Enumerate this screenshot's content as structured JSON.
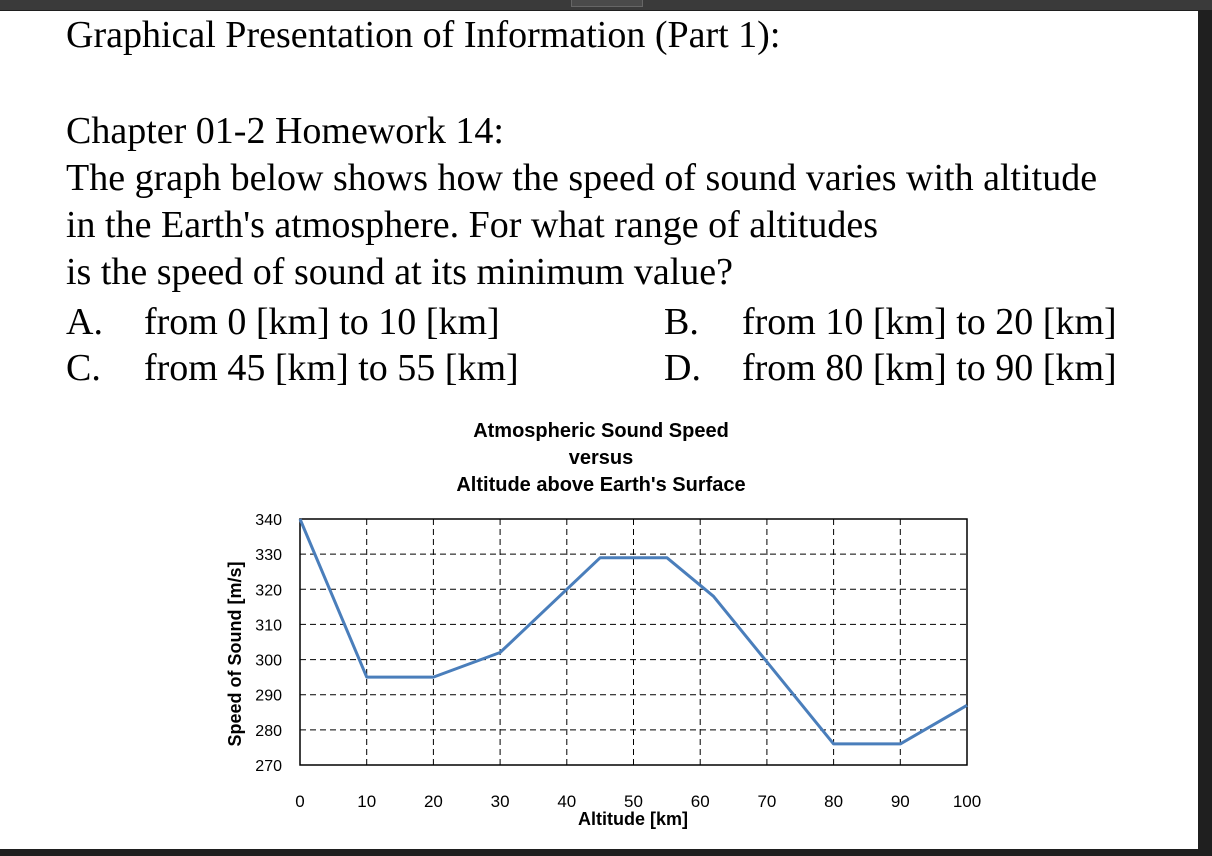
{
  "title": "Graphical Presentation of Information (Part 1):",
  "question": {
    "chapter": "Chapter 01-2 Homework 14:",
    "lines": [
      "The graph below shows how the speed of sound varies with altitude",
      "in the Earth's atmosphere.  For what range of altitudes",
      "is the speed of sound at its minimum value?"
    ],
    "options": [
      {
        "letter": "A.",
        "text": "from 0 [km] to 10 [km]"
      },
      {
        "letter": "B.",
        "text": "from 10 [km] to 20 [km]"
      },
      {
        "letter": "C.",
        "text": "from 45 [km] to 55 [km]"
      },
      {
        "letter": "D.",
        "text": "from 80 [km] to 90 [km]"
      }
    ]
  },
  "chart_data": {
    "type": "line",
    "title_lines": [
      "Atmospheric Sound Speed",
      "versus",
      "Altitude above Earth's Surface"
    ],
    "xlabel": "Altitude [km]",
    "ylabel": "Speed of Sound [m/s]",
    "xlim": [
      0,
      100
    ],
    "ylim": [
      270,
      340
    ],
    "xticks": [
      0,
      10,
      20,
      30,
      40,
      50,
      60,
      70,
      80,
      90,
      100
    ],
    "yticks": [
      270,
      280,
      290,
      300,
      310,
      320,
      330,
      340
    ],
    "grid": true,
    "line_color": "#4a7ebb",
    "series": [
      {
        "x": [
          0,
          10,
          20,
          30,
          45,
          55,
          62,
          80,
          90,
          100
        ],
        "y": [
          340,
          295,
          295,
          302,
          329,
          329,
          318,
          276,
          276,
          287
        ]
      }
    ]
  }
}
